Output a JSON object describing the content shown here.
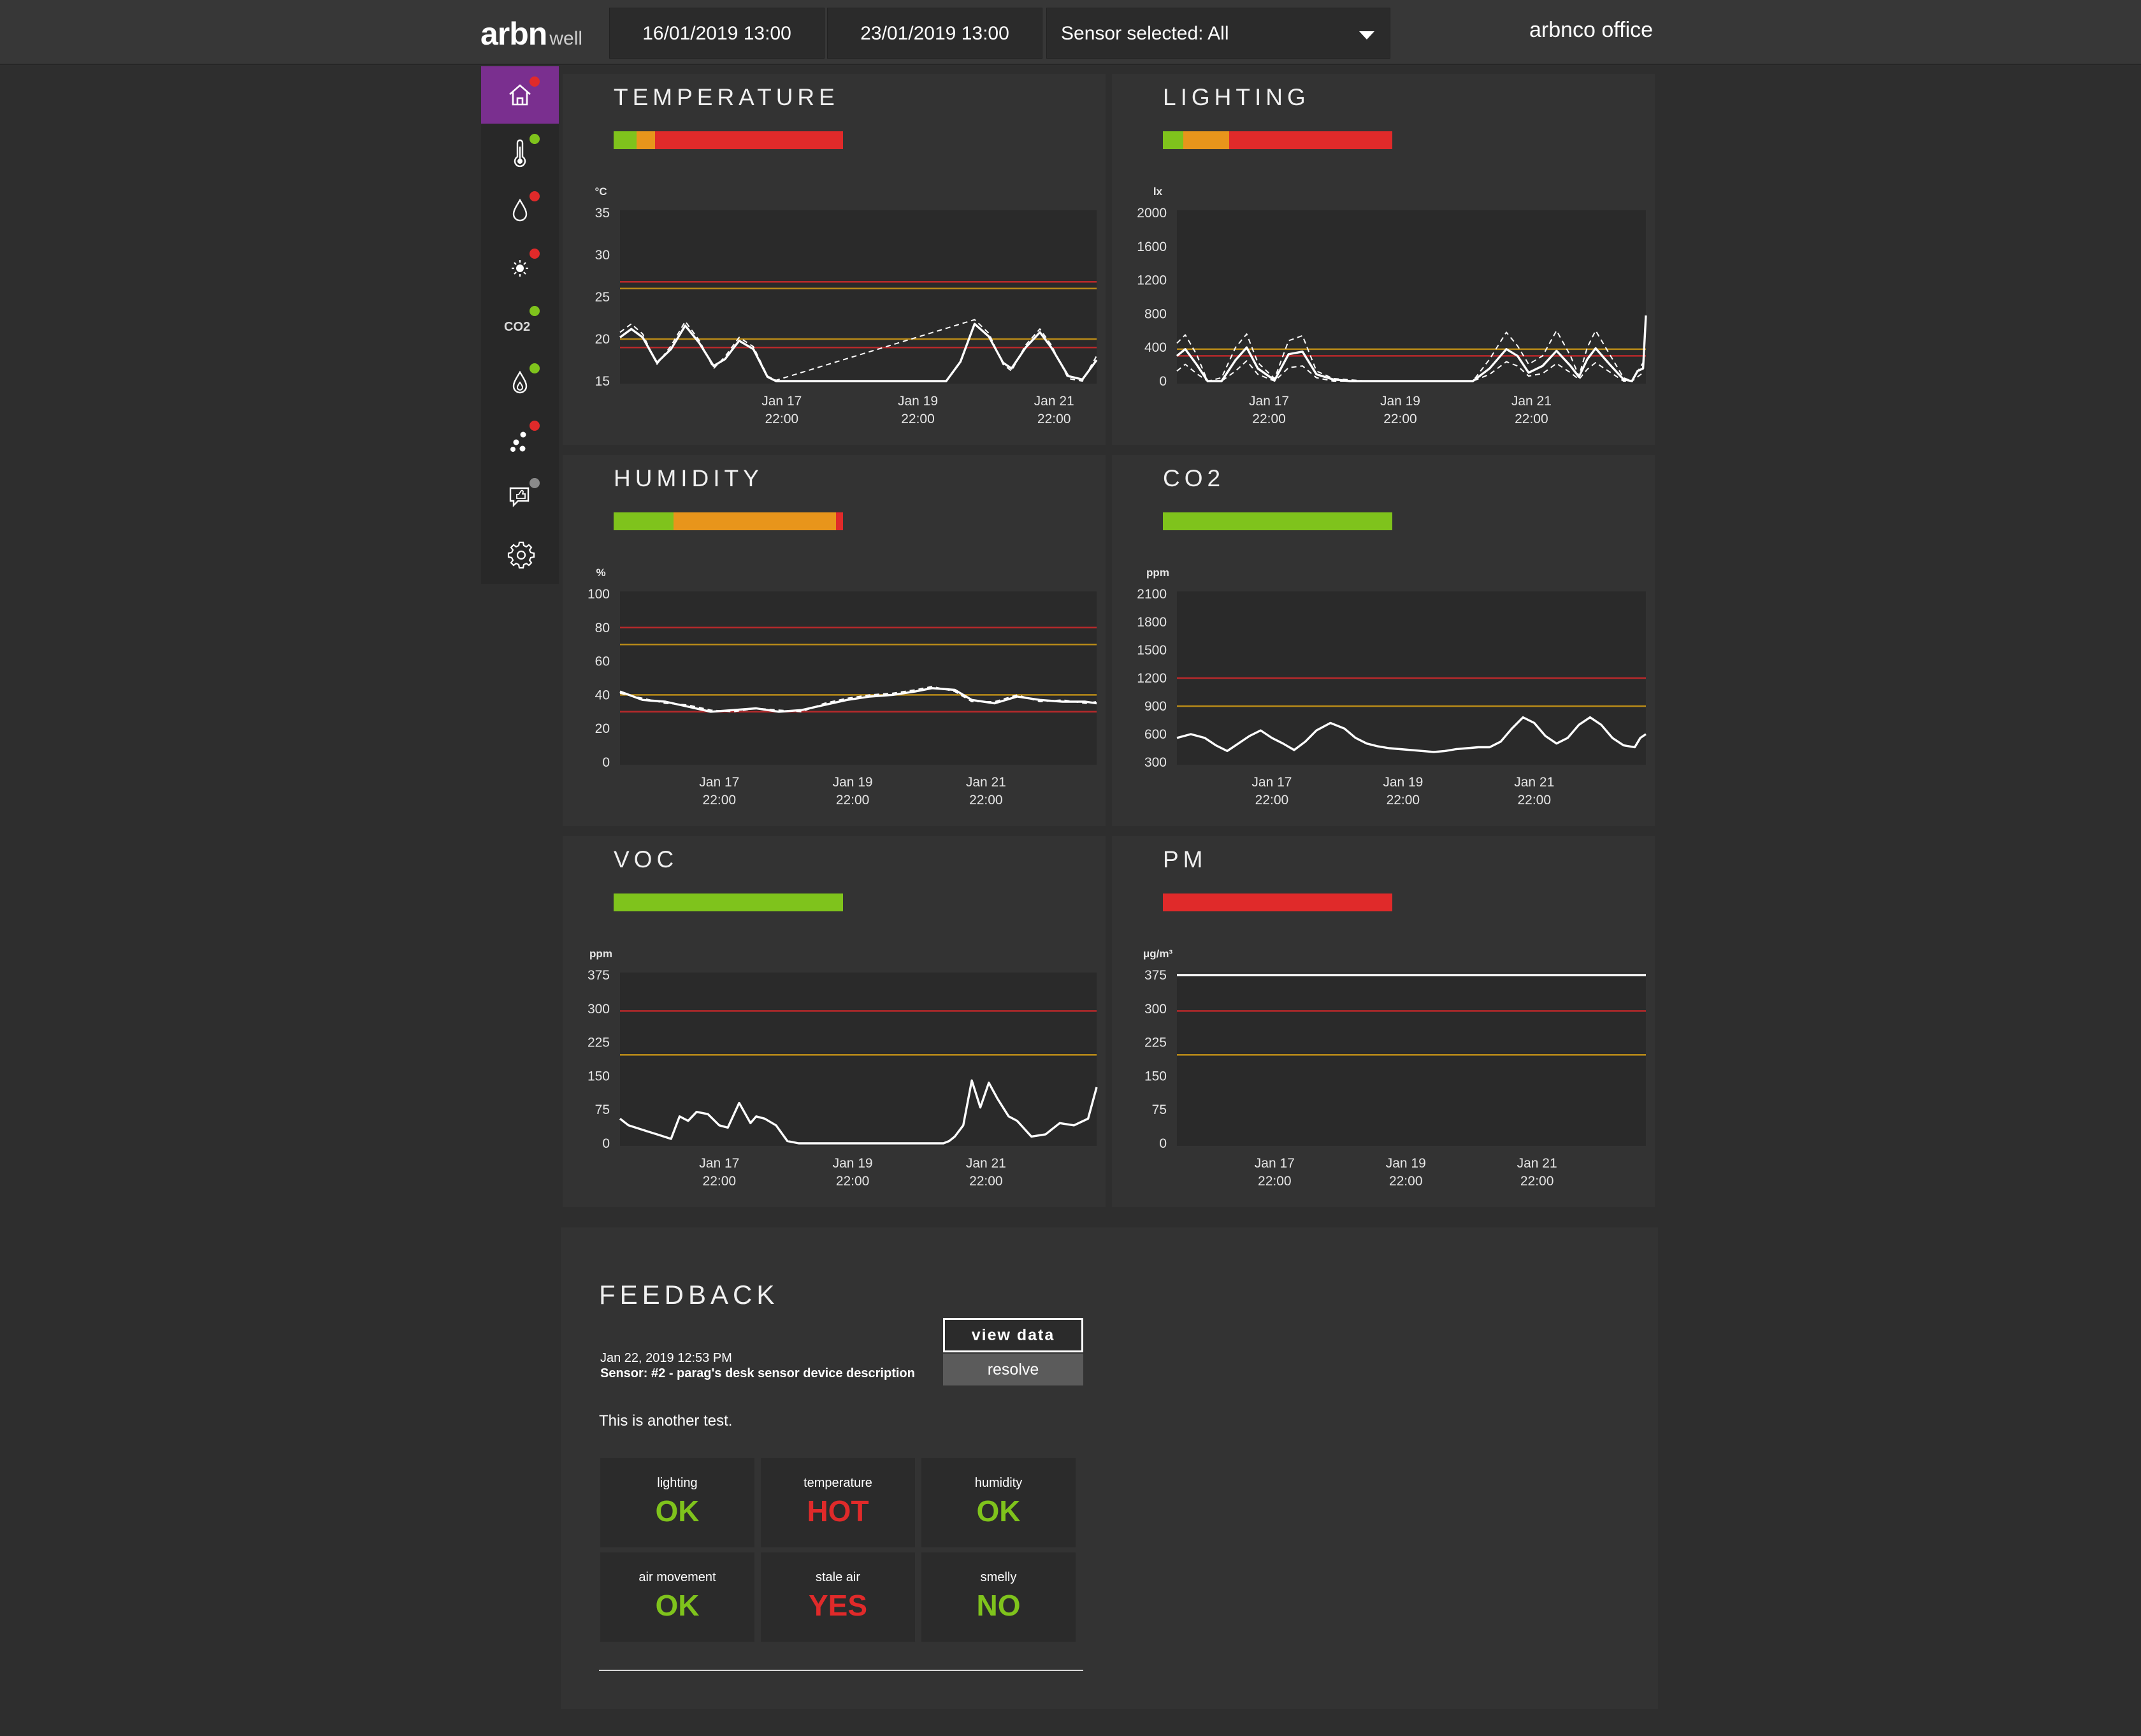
{
  "header": {
    "logo_main": "arbn",
    "logo_sub": "well",
    "date_from": "16/01/2019 13:00",
    "date_to": "23/01/2019 13:00",
    "sensor_label": "Sensor selected: All",
    "org_name": "arbnco office"
  },
  "sidebar": {
    "items": [
      {
        "icon": "home-icon",
        "status_color": "#e02a2a",
        "active": true
      },
      {
        "icon": "thermometer-icon",
        "status_color": "#7fc31c"
      },
      {
        "icon": "water-drop-icon",
        "status_color": "#e02a2a"
      },
      {
        "icon": "sun-icon",
        "status_color": "#e02a2a"
      },
      {
        "icon": "co2-icon",
        "label": "CO2",
        "status_color": "#7fc31c"
      },
      {
        "icon": "flame-drop-icon",
        "status_color": "#7fc31c"
      },
      {
        "icon": "particles-icon",
        "status_color": "#e02a2a"
      },
      {
        "icon": "feedback-icon",
        "status_color": "#8a8a8a"
      },
      {
        "icon": "gear-icon"
      }
    ]
  },
  "colors": {
    "green": "#7fc31c",
    "orange": "#e8951b",
    "red": "#e02a2a",
    "line_red": "#b8292b",
    "line_amber": "#b88a18"
  },
  "chart_data": [
    {
      "id": "temperature",
      "title": "TEMPERATURE",
      "type": "line",
      "unit": "°C",
      "status_segments": [
        {
          "color": "green",
          "fraction": 0.1
        },
        {
          "color": "orange",
          "fraction": 0.08
        },
        {
          "color": "red",
          "fraction": 0.82
        }
      ],
      "ylim": [
        15,
        35
      ],
      "yticks": [
        15,
        20,
        25,
        30,
        35
      ],
      "xlim": [
        0,
        168
      ],
      "xticks": [
        {
          "x": 57,
          "label": [
            "Jan 17",
            "22:00"
          ]
        },
        {
          "x": 105,
          "label": [
            "Jan 19",
            "22:00"
          ]
        },
        {
          "x": 153,
          "label": [
            "Jan 21",
            "22:00"
          ]
        }
      ],
      "thresholds": [
        {
          "value": 26.8,
          "color": "line_red"
        },
        {
          "value": 26.0,
          "color": "line_amber"
        },
        {
          "value": 20.0,
          "color": "line_amber"
        },
        {
          "value": 19.0,
          "color": "line_red"
        }
      ],
      "series": [
        {
          "style": "solid",
          "x": [
            0,
            4,
            8,
            13,
            18,
            23,
            28,
            33,
            37,
            42,
            47,
            52,
            55,
            60,
            65,
            70,
            75,
            80,
            85,
            90,
            95,
            100,
            105,
            110,
            115,
            120,
            125,
            130,
            135,
            138,
            143,
            148,
            152,
            158,
            163,
            168
          ],
          "y": [
            20.2,
            21.2,
            20.2,
            17.2,
            18.8,
            21.6,
            19.5,
            16.8,
            17.6,
            19.8,
            18.8,
            15.5,
            15,
            15,
            15,
            15,
            15,
            15,
            15,
            15,
            15,
            15,
            15,
            15,
            15,
            17.3,
            21.8,
            20.3,
            17.2,
            16.5,
            19,
            20.8,
            19,
            15.6,
            15.2,
            17.5
          ]
        },
        {
          "style": "dashed",
          "x": [
            0,
            4,
            8,
            13,
            18,
            23,
            28,
            33,
            37,
            42,
            47,
            52,
            55,
            125,
            130,
            135,
            138,
            143,
            148,
            152,
            158,
            163,
            168
          ],
          "y": [
            20.8,
            21.8,
            20.6,
            17.0,
            19.2,
            22.1,
            19.8,
            16.5,
            17.9,
            20.2,
            19.1,
            15.6,
            15.1,
            22.3,
            20.7,
            17.0,
            16.2,
            19.3,
            21.2,
            19.3,
            15.3,
            15.0,
            18.0
          ]
        }
      ]
    },
    {
      "id": "lighting",
      "title": "LIGHTING",
      "type": "line",
      "unit": "lx",
      "status_segments": [
        {
          "color": "green",
          "fraction": 0.09
        },
        {
          "color": "orange",
          "fraction": 0.2
        },
        {
          "color": "red",
          "fraction": 0.71
        }
      ],
      "ylim": [
        0,
        2000
      ],
      "yticks": [
        0,
        400,
        800,
        1200,
        1600,
        2000
      ],
      "xlim": [
        0,
        168
      ],
      "xticks": [
        {
          "x": 33,
          "label": [
            "Jan 17",
            "22:00"
          ]
        },
        {
          "x": 80,
          "label": [
            "Jan 19",
            "22:00"
          ]
        },
        {
          "x": 127,
          "label": [
            "Jan 21",
            "22:00"
          ]
        }
      ],
      "thresholds": [
        {
          "value": 380,
          "color": "line_amber"
        },
        {
          "value": 300,
          "color": "line_red"
        }
      ],
      "series": [
        {
          "style": "solid",
          "x": [
            0,
            3,
            7,
            11,
            16,
            21,
            25,
            29,
            35,
            40,
            45,
            50,
            56,
            62,
            68,
            75,
            80,
            86,
            92,
            100,
            106,
            112,
            118,
            122,
            126,
            131,
            136,
            141,
            144,
            147,
            150,
            155,
            160,
            163,
            165,
            167,
            168
          ],
          "y": [
            300,
            380,
            200,
            0,
            0,
            250,
            400,
            150,
            10,
            320,
            350,
            80,
            20,
            0,
            0,
            0,
            0,
            0,
            0,
            0,
            0,
            150,
            380,
            300,
            100,
            180,
            360,
            180,
            50,
            260,
            390,
            200,
            20,
            0,
            120,
            150,
            780
          ]
        },
        {
          "style": "dashed",
          "x": [
            0,
            3,
            7,
            11,
            16,
            21,
            25,
            29,
            35,
            40,
            45,
            50,
            56,
            68,
            92,
            106,
            112,
            118,
            122,
            126,
            131,
            136,
            141,
            144,
            147,
            150,
            155,
            160,
            163,
            167
          ],
          "y": [
            450,
            550,
            320,
            0,
            40,
            400,
            560,
            220,
            30,
            480,
            540,
            120,
            30,
            0,
            0,
            0,
            260,
            580,
            420,
            200,
            300,
            600,
            300,
            60,
            400,
            600,
            320,
            40,
            0,
            220
          ]
        },
        {
          "style": "dashed",
          "x": [
            0,
            3,
            7,
            11,
            16,
            21,
            25,
            29,
            35,
            40,
            45,
            50,
            56,
            68,
            92,
            106,
            112,
            118,
            122,
            126,
            131,
            136,
            141,
            144,
            147,
            150,
            155,
            160,
            163,
            167
          ],
          "y": [
            120,
            200,
            90,
            0,
            0,
            120,
            240,
            80,
            0,
            160,
            180,
            40,
            0,
            0,
            0,
            0,
            80,
            230,
            180,
            60,
            90,
            210,
            100,
            20,
            140,
            220,
            110,
            0,
            0,
            100
          ]
        }
      ]
    },
    {
      "id": "humidity",
      "title": "HUMIDITY",
      "type": "line",
      "unit": "%",
      "status_segments": [
        {
          "color": "green",
          "fraction": 0.26
        },
        {
          "color": "orange",
          "fraction": 0.71
        },
        {
          "color": "red",
          "fraction": 0.03
        }
      ],
      "ylim": [
        0,
        100
      ],
      "yticks": [
        0,
        20,
        40,
        60,
        80,
        100
      ],
      "xlim": [
        0,
        168
      ],
      "xticks": [
        {
          "x": 35,
          "label": [
            "Jan 17",
            "22:00"
          ]
        },
        {
          "x": 82,
          "label": [
            "Jan 19",
            "22:00"
          ]
        },
        {
          "x": 129,
          "label": [
            "Jan 21",
            "22:00"
          ]
        }
      ],
      "thresholds": [
        {
          "value": 80,
          "color": "line_red"
        },
        {
          "value": 70,
          "color": "line_amber"
        },
        {
          "value": 40,
          "color": "line_amber"
        },
        {
          "value": 30,
          "color": "line_red"
        }
      ],
      "series": [
        {
          "style": "solid",
          "x": [
            0,
            8,
            16,
            24,
            32,
            40,
            48,
            56,
            64,
            72,
            80,
            88,
            96,
            104,
            110,
            118,
            124,
            132,
            140,
            148,
            156,
            164,
            168
          ],
          "y": [
            42,
            37,
            36,
            33,
            30,
            31,
            32,
            30,
            31,
            34,
            37,
            39,
            40,
            42,
            44,
            43,
            37,
            35,
            39,
            37,
            36,
            36,
            35
          ]
        },
        {
          "style": "dashed",
          "x": [
            0,
            8,
            16,
            24,
            32,
            40,
            48,
            56,
            64,
            72,
            80,
            88,
            96,
            104,
            110,
            118,
            124,
            132,
            140,
            148,
            156,
            164,
            168
          ],
          "y": [
            41,
            38,
            35,
            34,
            31,
            30,
            32,
            31,
            30,
            35,
            38,
            40,
            41,
            43,
            45,
            42,
            36,
            36,
            40,
            36,
            37,
            35,
            36
          ]
        }
      ]
    },
    {
      "id": "co2",
      "title": "CO2",
      "type": "line",
      "unit": "ppm",
      "status_segments": [
        {
          "color": "green",
          "fraction": 1.0
        }
      ],
      "ylim": [
        300,
        2100
      ],
      "yticks": [
        300,
        600,
        900,
        1200,
        1500,
        1800,
        2100
      ],
      "xlim": [
        0,
        168
      ],
      "xticks": [
        {
          "x": 34,
          "label": [
            "Jan 17",
            "22:00"
          ]
        },
        {
          "x": 81,
          "label": [
            "Jan 19",
            "22:00"
          ]
        },
        {
          "x": 128,
          "label": [
            "Jan 21",
            "22:00"
          ]
        }
      ],
      "thresholds": [
        {
          "value": 1200,
          "color": "line_red"
        },
        {
          "value": 900,
          "color": "line_amber"
        }
      ],
      "series": [
        {
          "style": "solid",
          "x": [
            0,
            5,
            10,
            14,
            18,
            22,
            26,
            30,
            34,
            38,
            42,
            46,
            50,
            55,
            60,
            64,
            68,
            72,
            76,
            80,
            84,
            88,
            92,
            96,
            100,
            104,
            108,
            112,
            116,
            120,
            124,
            128,
            132,
            136,
            140,
            144,
            148,
            152,
            156,
            160,
            164,
            166,
            168
          ],
          "y": [
            560,
            600,
            560,
            480,
            420,
            500,
            580,
            640,
            560,
            500,
            430,
            520,
            640,
            720,
            660,
            560,
            500,
            470,
            450,
            440,
            430,
            420,
            410,
            420,
            440,
            450,
            460,
            460,
            520,
            660,
            780,
            720,
            580,
            500,
            560,
            700,
            780,
            700,
            560,
            480,
            460,
            560,
            600
          ]
        }
      ]
    },
    {
      "id": "voc",
      "title": "VOC",
      "type": "line",
      "unit": "ppm",
      "status_segments": [
        {
          "color": "green",
          "fraction": 1.0
        }
      ],
      "ylim": [
        0,
        375
      ],
      "yticks": [
        0,
        75,
        150,
        225,
        300,
        375
      ],
      "xlim": [
        0,
        168
      ],
      "xticks": [
        {
          "x": 35,
          "label": [
            "Jan 17",
            "22:00"
          ]
        },
        {
          "x": 82,
          "label": [
            "Jan 19",
            "22:00"
          ]
        },
        {
          "x": 129,
          "label": [
            "Jan 21",
            "22:00"
          ]
        }
      ],
      "thresholds": [
        {
          "value": 295,
          "color": "line_red"
        },
        {
          "value": 197,
          "color": "line_amber"
        }
      ],
      "series": [
        {
          "style": "solid",
          "x": [
            0,
            3,
            8,
            13,
            18,
            21,
            24,
            27,
            31,
            35,
            38,
            42,
            46,
            48,
            51,
            55,
            59,
            63,
            70,
            80,
            90,
            100,
            106,
            110,
            114,
            116,
            118,
            121,
            124,
            127,
            130,
            133,
            137,
            140,
            145,
            150,
            155,
            160,
            165,
            168
          ],
          "y": [
            55,
            40,
            30,
            20,
            10,
            60,
            50,
            70,
            65,
            40,
            35,
            90,
            45,
            60,
            55,
            40,
            5,
            0,
            0,
            0,
            0,
            0,
            0,
            0,
            0,
            5,
            15,
            40,
            140,
            80,
            135,
            100,
            60,
            50,
            15,
            20,
            45,
            40,
            55,
            125
          ]
        }
      ]
    },
    {
      "id": "pm",
      "title": "PM",
      "type": "line",
      "unit": "μg/m³",
      "status_segments": [
        {
          "color": "red",
          "fraction": 1.0
        }
      ],
      "ylim": [
        0,
        375
      ],
      "yticks": [
        0,
        75,
        150,
        225,
        300,
        375
      ],
      "xlim": [
        0,
        168
      ],
      "xticks": [
        {
          "x": 35,
          "label": [
            "Jan 17",
            "22:00"
          ]
        },
        {
          "x": 82,
          "label": [
            "Jan 19",
            "22:00"
          ]
        },
        {
          "x": 129,
          "label": [
            "Jan 21",
            "22:00"
          ]
        }
      ],
      "thresholds": [
        {
          "value": 295,
          "color": "line_red"
        },
        {
          "value": 197,
          "color": "line_amber"
        }
      ],
      "series": [
        {
          "style": "solid",
          "x": [
            0,
            168
          ],
          "y": [
            375,
            375
          ]
        }
      ]
    }
  ],
  "feedback": {
    "title": "FEEDBACK",
    "date": "Jan 22, 2019 12:53 PM",
    "sensor": "Sensor: #2 - parag's desk sensor device description",
    "message": "This is another test.",
    "view_data_label": "view data",
    "resolve_label": "resolve",
    "grid": [
      {
        "label": "lighting",
        "value": "OK",
        "color": "#7fc31c"
      },
      {
        "label": "temperature",
        "value": "HOT",
        "color": "#e02a2a"
      },
      {
        "label": "humidity",
        "value": "OK",
        "color": "#7fc31c"
      },
      {
        "label": "air movement",
        "value": "OK",
        "color": "#7fc31c"
      },
      {
        "label": "stale air",
        "value": "YES",
        "color": "#e02a2a"
      },
      {
        "label": "smelly",
        "value": "NO",
        "color": "#7fc31c"
      }
    ]
  }
}
